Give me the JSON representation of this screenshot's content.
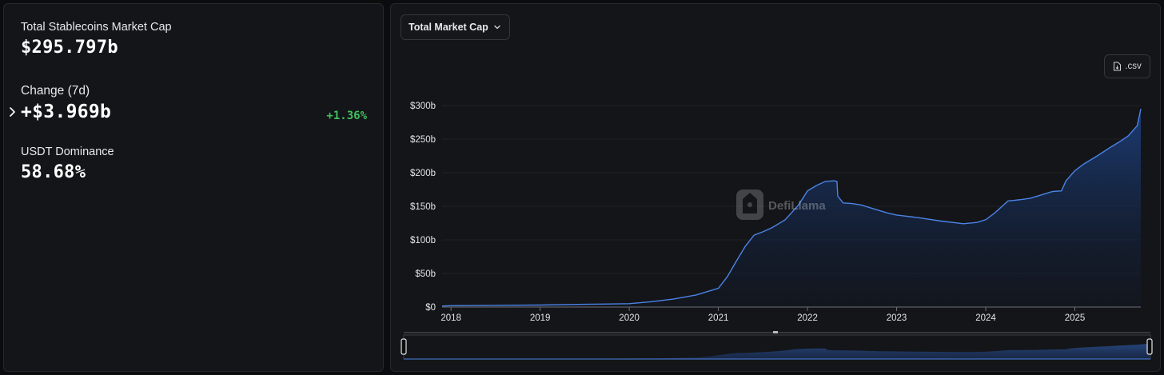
{
  "stats": {
    "market_cap_label": "Total Stablecoins Market Cap",
    "market_cap_value": "$295.797b",
    "change_label": "Change (7d)",
    "change_value": "+$3.969b",
    "change_percent": "+1.36%",
    "dominance_label": "USDT Dominance",
    "dominance_value": "58.68%"
  },
  "controls": {
    "dropdown_label": "Total Market Cap",
    "csv_label": ".csv"
  },
  "watermark": {
    "text": "DefiLlama"
  },
  "colors": {
    "line": "#4b83e6",
    "fill_top": "#1d3f7a",
    "positive": "#3fbf5f"
  },
  "chart_data": {
    "type": "area",
    "title": "",
    "xlabel": "",
    "ylabel": "",
    "xlim": [
      2017.9,
      2025.74
    ],
    "ylim": [
      0,
      300
    ],
    "y_ticks": [
      {
        "value": 0,
        "label": "$0"
      },
      {
        "value": 50,
        "label": "$50b"
      },
      {
        "value": 100,
        "label": "$100b"
      },
      {
        "value": 150,
        "label": "$150b"
      },
      {
        "value": 200,
        "label": "$200b"
      },
      {
        "value": 250,
        "label": "$250b"
      },
      {
        "value": 300,
        "label": "$300b"
      }
    ],
    "x_ticks": [
      {
        "value": 2018,
        "label": "2018"
      },
      {
        "value": 2019,
        "label": "2019"
      },
      {
        "value": 2020,
        "label": "2020"
      },
      {
        "value": 2021,
        "label": "2021"
      },
      {
        "value": 2022,
        "label": "2022"
      },
      {
        "value": 2023,
        "label": "2023"
      },
      {
        "value": 2024,
        "label": "2024"
      },
      {
        "value": 2025,
        "label": "2025"
      }
    ],
    "grid": true,
    "legend": "none",
    "series": [
      {
        "x": [
          2017.9,
          2018.0,
          2018.5,
          2019.0,
          2019.5,
          2020.0,
          2020.25,
          2020.5,
          2020.75,
          2021.0,
          2021.1,
          2021.2,
          2021.3,
          2021.4,
          2021.5,
          2021.6,
          2021.75,
          2021.9,
          2022.0,
          2022.1,
          2022.2,
          2022.3,
          2022.33,
          2022.34,
          2022.4,
          2022.5,
          2022.6,
          2022.75,
          2022.9,
          2023.0,
          2023.25,
          2023.5,
          2023.75,
          2023.9,
          2024.0,
          2024.1,
          2024.25,
          2024.4,
          2024.5,
          2024.6,
          2024.75,
          2024.85,
          2024.9,
          2025.0,
          2025.1,
          2025.25,
          2025.4,
          2025.5,
          2025.6,
          2025.7,
          2025.74
        ],
        "y": [
          1.5,
          2,
          2.5,
          3,
          4,
          5,
          8,
          12,
          18,
          28,
          45,
          68,
          90,
          107,
          112,
          118,
          130,
          152,
          173,
          181,
          187,
          188,
          187,
          165,
          155,
          154,
          152,
          146,
          140,
          137,
          133,
          128,
          124,
          126,
          130,
          140,
          158,
          160,
          162,
          166,
          172,
          173,
          188,
          203,
          213,
          225,
          238,
          246,
          255,
          270,
          295
        ]
      }
    ]
  }
}
